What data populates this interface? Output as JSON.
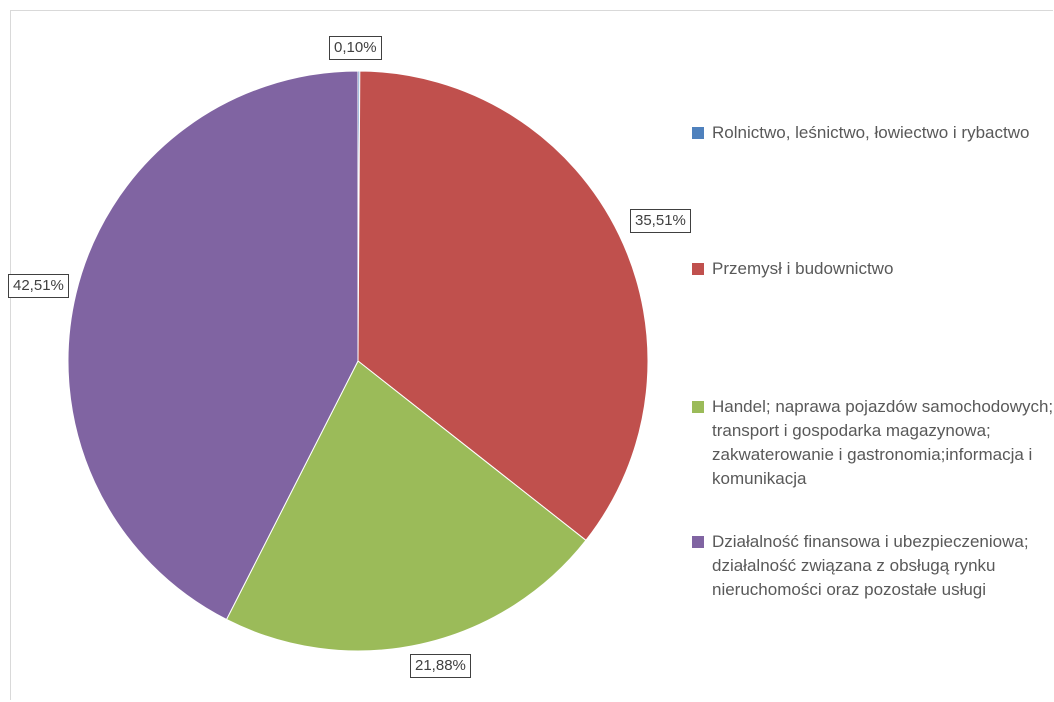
{
  "chart_data": {
    "type": "pie",
    "start_angle_deg": 0,
    "direction": "clockwise",
    "legend_position": "right",
    "slices": [
      {
        "name": "Rolnictwo, leśnictwo, łowiectwo i rybactwo",
        "value": 0.1,
        "label": "0,10%",
        "color": "#4F81BD"
      },
      {
        "name": "Przemysł i budownictwo",
        "value": 35.51,
        "label": "35,51%",
        "color": "#C0504D"
      },
      {
        "name": "Handel; naprawa pojazdów samochodowych; transport i gospodarka magazynowa; zakwaterowanie i gastronomia;informacja i komunikacja",
        "value": 21.88,
        "label": "21,88%",
        "color": "#9BBB59"
      },
      {
        "name": "Działalność finansowa i ubezpieczeniowa; działalność związana z obsługą rynku nieruchomości oraz pozostałe usługi",
        "value": 42.51,
        "label": "42,51%",
        "color": "#8064A2"
      }
    ]
  }
}
